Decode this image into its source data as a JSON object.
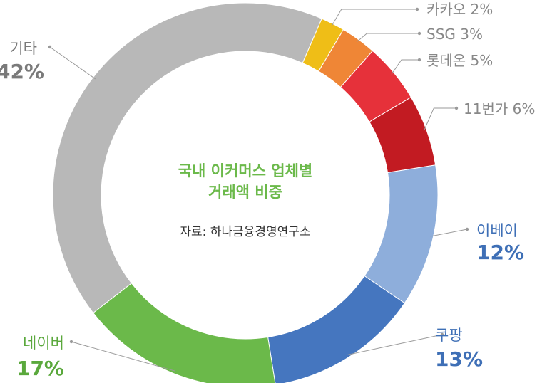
{
  "chart_data": {
    "type": "pie",
    "variant": "donut",
    "title": "국내 이커머스 업체별\n거래액 비중",
    "title_lines": [
      "국내 이커머스 업체별",
      "거래액 비중"
    ],
    "source": "자료: 하나금융경영연구소",
    "title_color": "#6bb94a",
    "slices": [
      {
        "name": "이베이",
        "value": 12,
        "label": "이베이",
        "pct": "12%",
        "color": "#8eaedb",
        "label_color": "#3e6fb6",
        "label_style": "big"
      },
      {
        "name": "쿠팡",
        "value": 13,
        "label": "쿠팡",
        "pct": "13%",
        "color": "#4576bf",
        "label_color": "#3e6fb6",
        "label_style": "big"
      },
      {
        "name": "네이버",
        "value": 17,
        "label": "네이버",
        "pct": "17%",
        "color": "#6bb94a",
        "label_color": "#5aa83c",
        "label_style": "big"
      },
      {
        "name": "기타",
        "value": 42,
        "label": "기타",
        "pct": "42%",
        "color": "#b8b8b8",
        "label_color": "#7a7a7a",
        "label_style": "big"
      },
      {
        "name": "카카오",
        "value": 2,
        "label": "카카오 2%",
        "pct": "2%",
        "color": "#efbe17",
        "label_color": "#888888",
        "label_style": "small"
      },
      {
        "name": "SSG",
        "value": 3,
        "label": "SSG 3%",
        "pct": "3%",
        "color": "#ef8636",
        "label_color": "#888888",
        "label_style": "small"
      },
      {
        "name": "롯데온",
        "value": 5,
        "label": "롯데온 5%",
        "pct": "5%",
        "color": "#e6313a",
        "label_color": "#888888",
        "label_style": "small"
      },
      {
        "name": "11번가",
        "value": 6,
        "label": "11번가 6%",
        "pct": "6%",
        "color": "#c21b22",
        "label_color": "#888888",
        "label_style": "small"
      }
    ]
  }
}
